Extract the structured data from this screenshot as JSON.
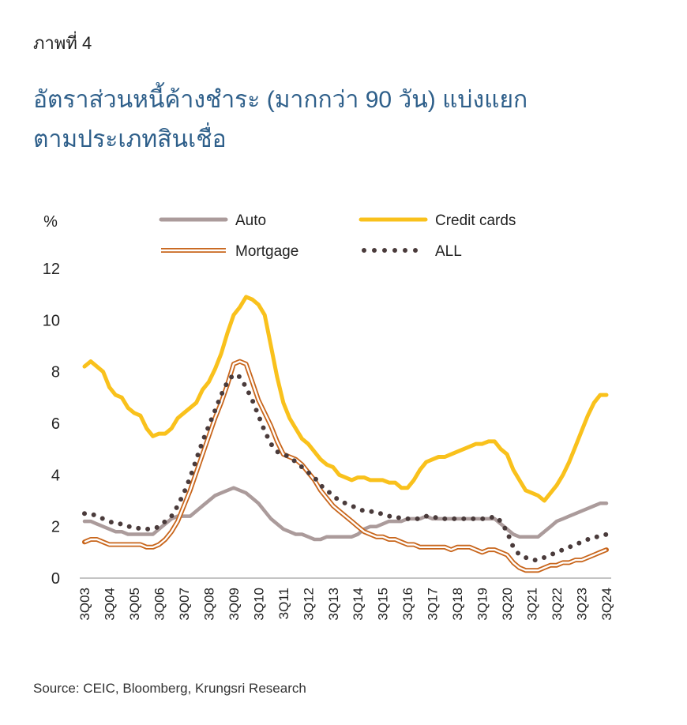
{
  "chart_data": {
    "type": "line",
    "figure_label": "ภาพที่ 4",
    "title": [
      "อัตราส่วนหนี้ค้างชำระ (มากกว่า 90 วัน) แบ่งแยก",
      "ตามประเภทสินเชื่อ"
    ],
    "y_label": "%",
    "source": "Source: CEIC, Bloomberg, Krungsri Research",
    "categories": [
      "3Q03",
      null,
      null,
      null,
      "3Q04",
      null,
      null,
      null,
      "3Q05",
      null,
      null,
      null,
      "3Q06",
      null,
      null,
      null,
      "3Q07",
      null,
      null,
      null,
      "3Q08",
      null,
      null,
      null,
      "3Q09",
      null,
      null,
      null,
      "3Q10",
      null,
      null,
      null,
      "3Q11",
      null,
      null,
      null,
      "3Q12",
      null,
      null,
      null,
      "3Q13",
      null,
      null,
      null,
      "3Q14",
      null,
      null,
      null,
      "3Q15",
      null,
      null,
      null,
      "3Q16",
      null,
      null,
      null,
      "3Q17",
      null,
      null,
      null,
      "3Q18",
      null,
      null,
      null,
      "3Q19",
      null,
      null,
      null,
      "3Q20",
      null,
      null,
      null,
      "3Q21",
      null,
      null,
      null,
      "3Q22",
      null,
      null,
      null,
      "3Q23",
      null,
      null,
      null,
      "3Q24"
    ],
    "ylim": [
      0,
      12
    ],
    "yticks": [
      0,
      2,
      4,
      6,
      8,
      10,
      12
    ],
    "series": [
      {
        "name": "Auto",
        "color": "#ab9b9b",
        "style": "solid",
        "values": [
          2.2,
          2.2,
          2.1,
          2.0,
          1.9,
          1.8,
          1.8,
          1.7,
          1.7,
          1.7,
          1.7,
          1.7,
          1.9,
          2.1,
          2.3,
          2.4,
          2.4,
          2.4,
          2.6,
          2.8,
          3.0,
          3.2,
          3.3,
          3.4,
          3.5,
          3.4,
          3.3,
          3.1,
          2.9,
          2.6,
          2.3,
          2.1,
          1.9,
          1.8,
          1.7,
          1.7,
          1.6,
          1.5,
          1.5,
          1.6,
          1.6,
          1.6,
          1.6,
          1.6,
          1.7,
          1.9,
          2.0,
          2.0,
          2.1,
          2.2,
          2.2,
          2.2,
          2.3,
          2.3,
          2.3,
          2.4,
          2.3,
          2.3,
          2.3,
          2.3,
          2.3,
          2.3,
          2.3,
          2.3,
          2.3,
          2.3,
          2.3,
          2.1,
          1.9,
          1.7,
          1.6,
          1.6,
          1.6,
          1.6,
          1.8,
          2.0,
          2.2,
          2.3,
          2.4,
          2.5,
          2.6,
          2.7,
          2.8,
          2.9,
          2.9
        ]
      },
      {
        "name": "Credit cards",
        "color": "#f9c11c",
        "style": "solid",
        "values": [
          8.2,
          8.4,
          8.2,
          8.0,
          7.4,
          7.1,
          7.0,
          6.6,
          6.4,
          6.3,
          5.8,
          5.5,
          5.6,
          5.6,
          5.8,
          6.2,
          6.4,
          6.6,
          6.8,
          7.3,
          7.6,
          8.1,
          8.7,
          9.5,
          10.2,
          10.5,
          10.9,
          10.8,
          10.6,
          10.2,
          9.0,
          7.8,
          6.8,
          6.2,
          5.8,
          5.4,
          5.2,
          4.9,
          4.6,
          4.4,
          4.3,
          4.0,
          3.9,
          3.8,
          3.9,
          3.9,
          3.8,
          3.8,
          3.8,
          3.7,
          3.7,
          3.5,
          3.5,
          3.8,
          4.2,
          4.5,
          4.6,
          4.7,
          4.7,
          4.8,
          4.9,
          5.0,
          5.1,
          5.2,
          5.2,
          5.3,
          5.3,
          5.0,
          4.8,
          4.2,
          3.8,
          3.4,
          3.3,
          3.2,
          3.0,
          3.3,
          3.6,
          4.0,
          4.5,
          5.1,
          5.7,
          6.3,
          6.8,
          7.1,
          7.1
        ]
      },
      {
        "name": "Mortgage",
        "color": "#c8651b",
        "style": "double",
        "values": [
          1.4,
          1.5,
          1.5,
          1.4,
          1.3,
          1.3,
          1.3,
          1.3,
          1.3,
          1.3,
          1.2,
          1.2,
          1.3,
          1.5,
          1.8,
          2.2,
          2.8,
          3.4,
          4.1,
          4.8,
          5.5,
          6.2,
          6.8,
          7.5,
          8.3,
          8.4,
          8.3,
          7.6,
          6.9,
          6.4,
          5.9,
          5.3,
          4.8,
          4.7,
          4.6,
          4.4,
          4.1,
          3.8,
          3.4,
          3.1,
          2.8,
          2.6,
          2.4,
          2.2,
          2.0,
          1.8,
          1.7,
          1.6,
          1.6,
          1.5,
          1.5,
          1.4,
          1.3,
          1.3,
          1.2,
          1.2,
          1.2,
          1.2,
          1.2,
          1.1,
          1.2,
          1.2,
          1.2,
          1.1,
          1.0,
          1.1,
          1.1,
          1.0,
          0.9,
          0.6,
          0.4,
          0.3,
          0.3,
          0.3,
          0.4,
          0.5,
          0.5,
          0.6,
          0.6,
          0.7,
          0.7,
          0.8,
          0.9,
          1.0,
          1.1
        ]
      },
      {
        "name": "ALL",
        "color": "#4a3b3b",
        "style": "dotted",
        "values": [
          2.5,
          2.5,
          2.4,
          2.3,
          2.2,
          2.1,
          2.1,
          2.0,
          2.0,
          1.9,
          1.9,
          1.9,
          2.0,
          2.2,
          2.4,
          2.8,
          3.3,
          3.9,
          4.6,
          5.3,
          5.9,
          6.5,
          7.1,
          7.6,
          7.9,
          7.8,
          7.4,
          6.9,
          6.3,
          5.7,
          5.2,
          4.9,
          4.8,
          4.7,
          4.5,
          4.3,
          4.1,
          3.9,
          3.6,
          3.4,
          3.2,
          3.0,
          2.9,
          2.8,
          2.7,
          2.6,
          2.6,
          2.5,
          2.5,
          2.4,
          2.4,
          2.3,
          2.3,
          2.3,
          2.3,
          2.4,
          2.4,
          2.3,
          2.3,
          2.3,
          2.3,
          2.3,
          2.3,
          2.3,
          2.3,
          2.3,
          2.4,
          2.2,
          1.8,
          1.2,
          0.9,
          0.8,
          0.7,
          0.7,
          0.8,
          0.9,
          1.0,
          1.1,
          1.2,
          1.3,
          1.4,
          1.5,
          1.6,
          1.6,
          1.7
        ]
      }
    ]
  }
}
